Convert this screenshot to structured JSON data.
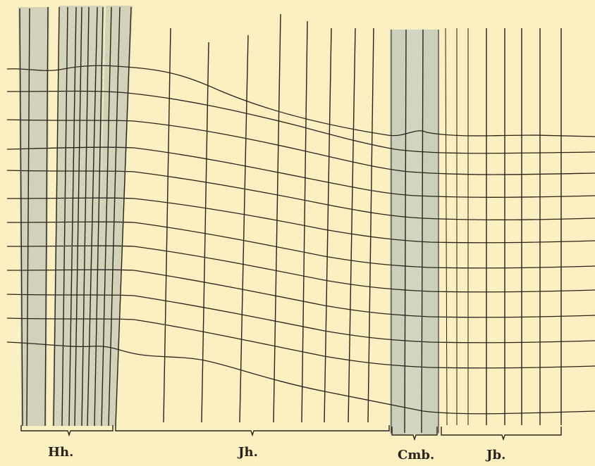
{
  "figure": {
    "background": "#fbf0c2",
    "ink": "#2a2218",
    "band_shade": "#c9cdb6",
    "labels": {
      "hh": "Hh.",
      "jh": "Jh.",
      "cmb": "Cmb.",
      "jb": "Jb."
    }
  }
}
